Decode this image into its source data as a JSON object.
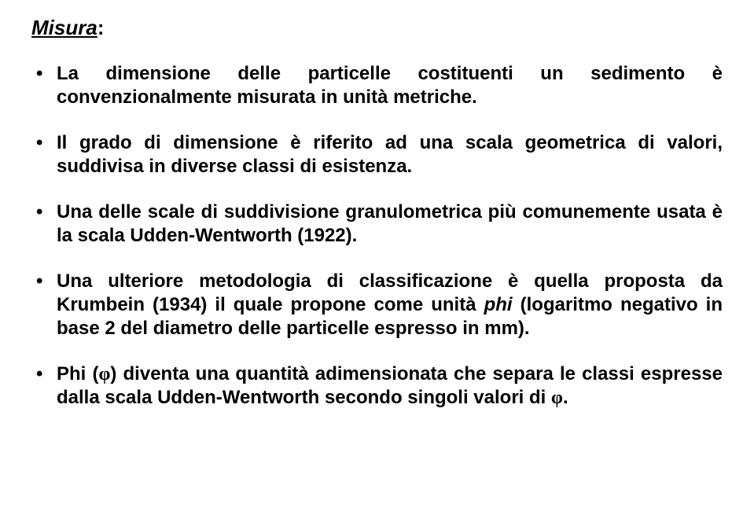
{
  "heading": {
    "underlined": "Misura",
    "after": ":"
  },
  "bullets": [
    {
      "parts": [
        {
          "text": "La dimensione delle particelle costituenti un sedimento è convenzionalmente misurata in unità metriche."
        }
      ]
    },
    {
      "parts": [
        {
          "text": "Il grado di dimensione è riferito ad una scala geometrica di valori, suddivisa in diverse classi di esistenza."
        }
      ]
    },
    {
      "parts": [
        {
          "text": "Una delle scale di suddivisione granulometrica più comunemente usata è la scala Udden-Wentworth (1922)."
        }
      ]
    },
    {
      "parts": [
        {
          "text": "Una ulteriore metodologia di classificazione è quella proposta da Krumbein (1934) il quale propone come unità "
        },
        {
          "text": "phi",
          "italic": true
        },
        {
          "text": " (logaritmo negativo in base 2 del diametro delle particelle espresso in mm)."
        }
      ]
    },
    {
      "parts": [
        {
          "text": "Phi ("
        },
        {
          "text": "φ",
          "phi": true
        },
        {
          "text": ") diventa una quantità adimensionata che separa le classi espresse dalla scala Udden-Wentworth secondo singoli valori di "
        },
        {
          "text": "φ",
          "phi": true
        },
        {
          "text": "."
        }
      ]
    }
  ]
}
